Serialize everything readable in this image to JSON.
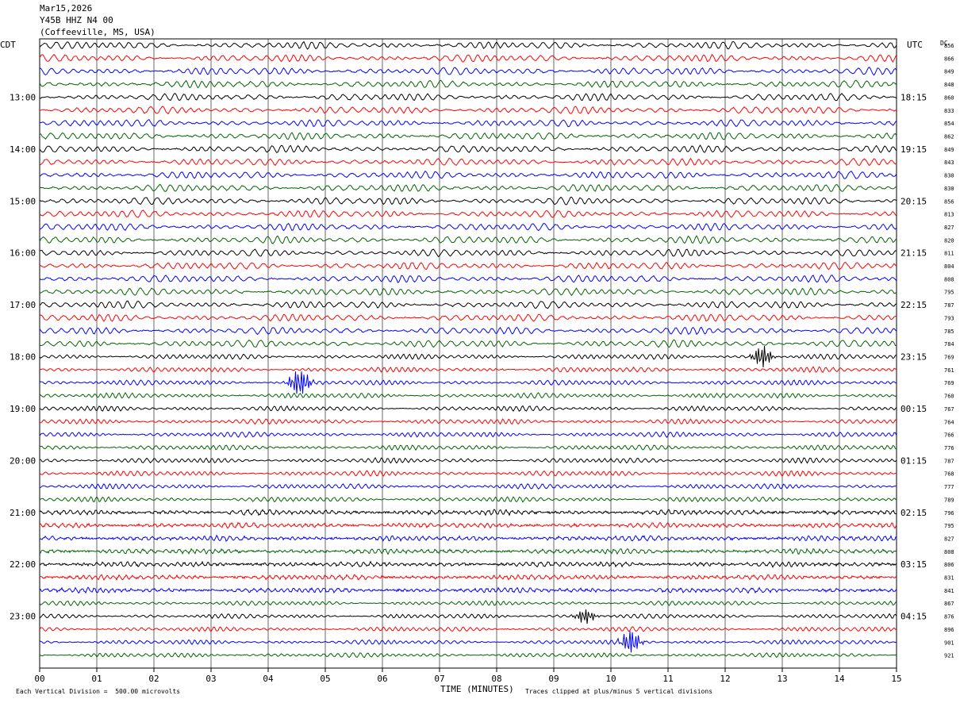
{
  "header": {
    "date": "Mar15,2026",
    "station": "Y45B HHZ N4 00",
    "location": "(Coffeeville, MS, USA)"
  },
  "left_tz": "CDT",
  "right_tz": "UTC",
  "dc_label": "DC",
  "footer": {
    "scale_note": "Each Vertical Division =  500.00 microvolts",
    "clip_note": "Traces clipped at plus/minus 5 vertical divisions",
    "x_title": "TIME (MINUTES)"
  },
  "colors": {
    "black": "#000000",
    "red": "#ff0000",
    "blue": "#0000ff",
    "green": "#006400",
    "grid": "#000000"
  },
  "chart_data": {
    "type": "line",
    "title": "Y45B HHZ N4 00",
    "xlabel": "TIME (MINUTES)",
    "x_ticks": [
      "00",
      "01",
      "02",
      "03",
      "04",
      "05",
      "06",
      "07",
      "08",
      "09",
      "10",
      "11",
      "12",
      "13",
      "14",
      "15"
    ],
    "xlim": [
      0,
      15
    ],
    "trace_colors": [
      "black",
      "red",
      "blue",
      "green"
    ],
    "left_hour_labels": [
      "13:00",
      "14:00",
      "15:00",
      "16:00",
      "17:00",
      "18:00",
      "19:00",
      "20:00",
      "21:00",
      "22:00",
      "23:00"
    ],
    "right_hour_labels": [
      "18:15",
      "19:15",
      "20:15",
      "21:15",
      "22:15",
      "23:15",
      "00:15",
      "01:15",
      "02:15",
      "03:15",
      "04:15"
    ],
    "dc_offsets": [
      856,
      866,
      849,
      848,
      860,
      833,
      854,
      862,
      849,
      843,
      830,
      830,
      856,
      813,
      827,
      820,
      811,
      804,
      808,
      795,
      787,
      793,
      785,
      784,
      769,
      761,
      769,
      760,
      767,
      764,
      766,
      776,
      787,
      768,
      777,
      789,
      796,
      795,
      827,
      808,
      806,
      831,
      841,
      867,
      876,
      896,
      901,
      921
    ],
    "events": [
      {
        "trace": 26,
        "minute": 4.55,
        "strength": 3.2
      },
      {
        "trace": 24,
        "minute": 12.65,
        "strength": 2.0
      },
      {
        "trace": 46,
        "minute": 10.35,
        "strength": 2.2
      },
      {
        "trace": 44,
        "minute": 9.55,
        "strength": 1.4
      }
    ]
  }
}
